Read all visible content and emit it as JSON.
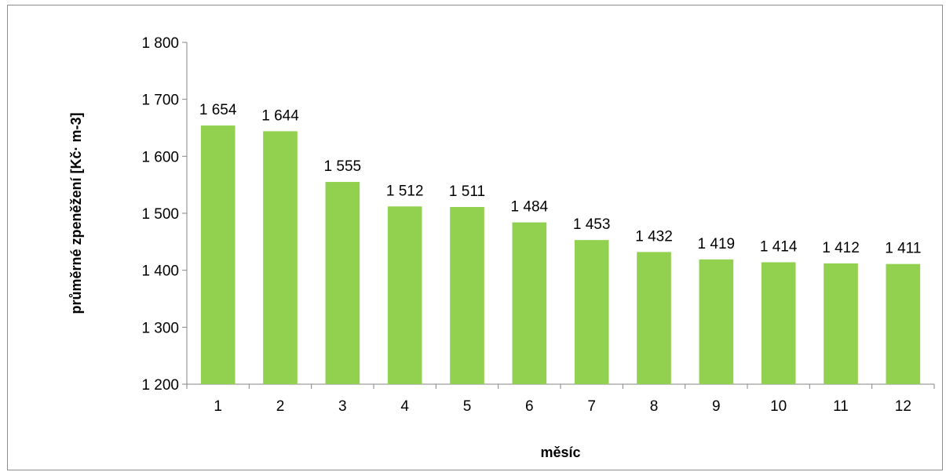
{
  "chart_data": {
    "type": "bar",
    "title": "",
    "xlabel": "měsíc",
    "ylabel": "průměrné zpeněžení [Kč· m-3]",
    "categories": [
      "1",
      "2",
      "3",
      "4",
      "5",
      "6",
      "7",
      "8",
      "9",
      "10",
      "11",
      "12"
    ],
    "values": [
      1654,
      1644,
      1555,
      1512,
      1511,
      1484,
      1453,
      1432,
      1419,
      1414,
      1412,
      1411
    ],
    "value_labels": [
      "1 654",
      "1 644",
      "1 555",
      "1 512",
      "1 511",
      "1 484",
      "1 453",
      "1 432",
      "1 419",
      "1 414",
      "1 412",
      "1 411"
    ],
    "ylim": [
      1200,
      1800
    ],
    "yticks": [
      1200,
      1300,
      1400,
      1500,
      1600,
      1700,
      1800
    ],
    "ytick_labels": [
      "1 200",
      "1 300",
      "1 400",
      "1 500",
      "1 600",
      "1 700",
      "1 800"
    ],
    "bar_color": "#92d050",
    "axis_color": "#868686",
    "grid": false,
    "legend": "none"
  }
}
